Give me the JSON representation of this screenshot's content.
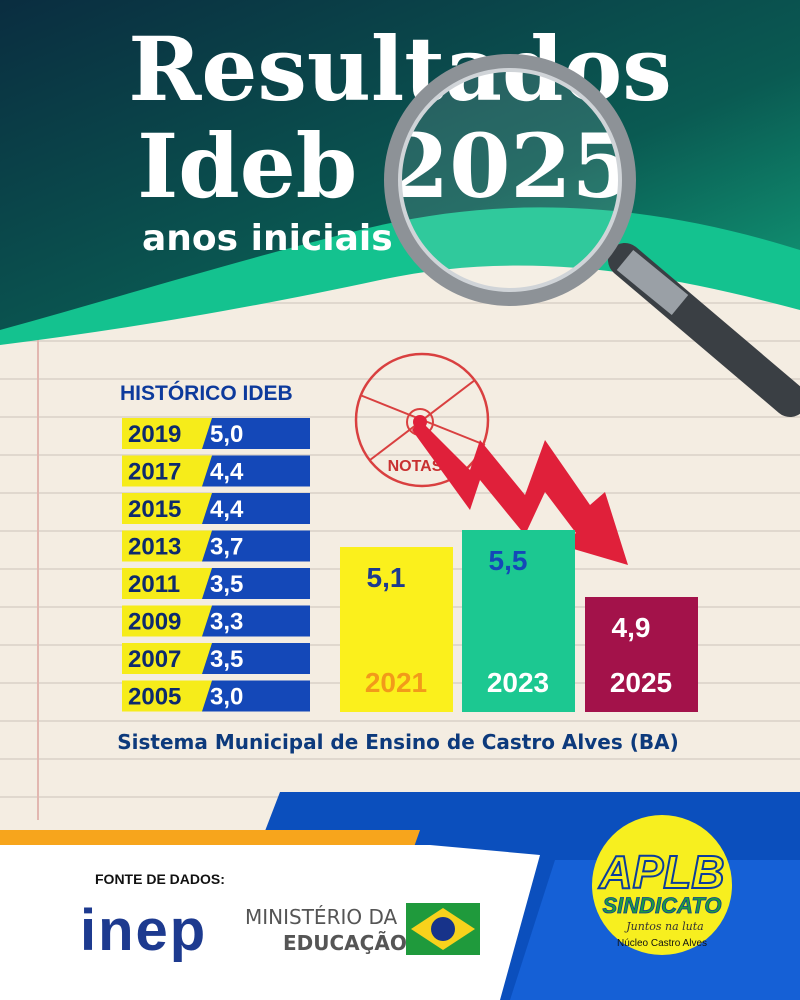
{
  "header": {
    "title_line1": "Resultados",
    "title_line2": "Ideb 2025",
    "subtitle": "anos iniciais"
  },
  "history": {
    "heading": "HISTÓRICO IDEB",
    "rows": [
      [
        "2019",
        "5,0"
      ],
      [
        "2017",
        "4,4"
      ],
      [
        "2015",
        "4,4"
      ],
      [
        "2013",
        "3,7"
      ],
      [
        "2011",
        "3,5"
      ],
      [
        "2009",
        "3,3"
      ],
      [
        "2007",
        "3,5"
      ],
      [
        "2005",
        "3,0"
      ]
    ]
  },
  "stamp": "NOTAS",
  "bars": [
    {
      "year": "2021",
      "value": "5,1"
    },
    {
      "year": "2023",
      "value": "5,5"
    },
    {
      "year": "2025",
      "value": "4,9"
    }
  ],
  "caption": "Sistema Municipal de Ensino de Castro Alves (BA)",
  "footer": {
    "source_label": "FONTE DE DADOS:",
    "inep": "inep",
    "ministry_line1": "MINISTÉRIO DA",
    "ministry_line2": "EDUCAÇÃO",
    "union": {
      "name": "APLB",
      "sub": "SINDICATO",
      "motto": "Juntos na luta",
      "branch": "Núcleo Castro Alves"
    }
  }
}
